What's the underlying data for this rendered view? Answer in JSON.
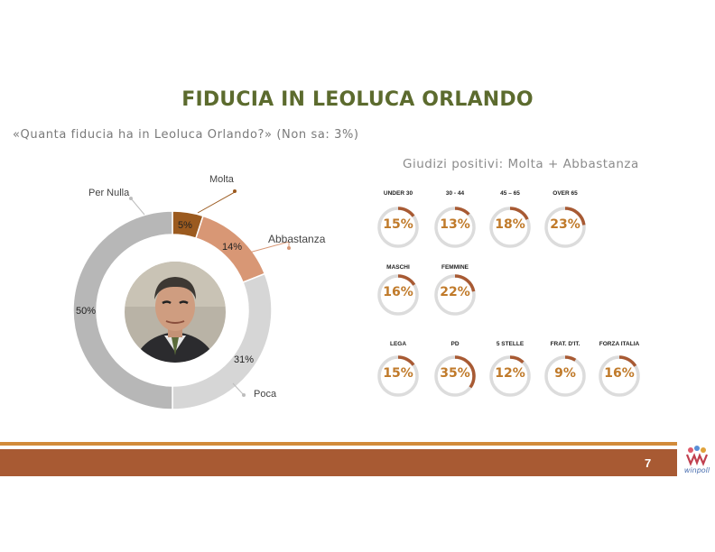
{
  "title": "FIDUCIA IN LEOLUCA ORLANDO",
  "subtitle": "«Quanta fiducia ha in Leoluca Orlando?» (Non sa: 3%)",
  "right_heading": "Giudizi positivi: Molta + Abbastanza",
  "chart_data": [
    {
      "type": "pie",
      "variant": "donut",
      "categories": [
        "Molta",
        "Abbastanza",
        "Poca",
        "Per Nulla"
      ],
      "values": [
        5,
        14,
        31,
        50
      ],
      "data_labels": [
        "5%",
        "14%",
        "31%",
        "50%"
      ],
      "colors": [
        "#9b5a1f",
        "#d89775",
        "#d6d6d6",
        "#b7b7b7"
      ]
    },
    {
      "type": "bar",
      "variant": "radial-gauges",
      "groups": [
        {
          "categories": [
            "UNDER 30",
            "30 - 44",
            "45 – 65",
            "OVER 65"
          ],
          "values": [
            15,
            13,
            18,
            23
          ],
          "labels": [
            "15%",
            "13%",
            "18%",
            "23%"
          ]
        },
        {
          "categories": [
            "MASCHI",
            "FEMMINE"
          ],
          "values": [
            16,
            22
          ],
          "labels": [
            "16%",
            "22%"
          ]
        },
        {
          "categories": [
            "LEGA",
            "PD",
            "5 STELLE",
            "FRAT. D'IT.",
            "FORZA ITALIA"
          ],
          "values": [
            15,
            35,
            12,
            9,
            16
          ],
          "labels": [
            "15%",
            "35%",
            "12%",
            "9%",
            "16%"
          ]
        }
      ],
      "ylim": [
        0,
        100
      ],
      "colors": {
        "track": "#dcdcdc",
        "fill": "#a85a33",
        "text": "#c07a2a"
      }
    }
  ],
  "footer": {
    "page_number": "7",
    "logo_text": "winpoll"
  },
  "colors": {
    "title": "#5c6b2e",
    "footer_bar": "#a85a33",
    "footer_line": "#d28b3a"
  }
}
